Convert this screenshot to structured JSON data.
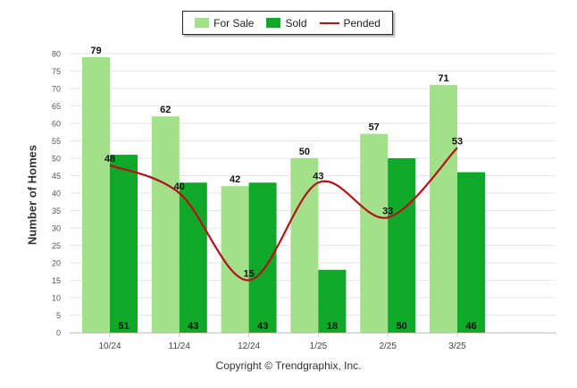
{
  "chart_data": {
    "type": "bar",
    "categories": [
      "10/24",
      "11/24",
      "12/24",
      "1/25",
      "2/25",
      "3/25"
    ],
    "series": [
      {
        "name": "For Sale",
        "kind": "bar",
        "color": "#a3e08a",
        "values": [
          79,
          62,
          42,
          50,
          57,
          71
        ]
      },
      {
        "name": "Sold",
        "kind": "bar",
        "color": "#10a828",
        "values": [
          51,
          43,
          43,
          18,
          50,
          46
        ]
      },
      {
        "name": "Pended",
        "kind": "line",
        "color": "#b3121b",
        "values": [
          48,
          40,
          15,
          43,
          33,
          53
        ]
      }
    ],
    "ylabel": "Number of Homes",
    "xlabel": "",
    "ylim": [
      0,
      80
    ],
    "yticks": [
      0,
      5,
      10,
      15,
      20,
      25,
      30,
      35,
      40,
      45,
      50,
      55,
      60,
      65,
      70,
      75,
      80
    ],
    "grid": true,
    "legend_position": "top-center"
  },
  "footer": {
    "credit": "Copyright © Trendgraphix, Inc."
  }
}
